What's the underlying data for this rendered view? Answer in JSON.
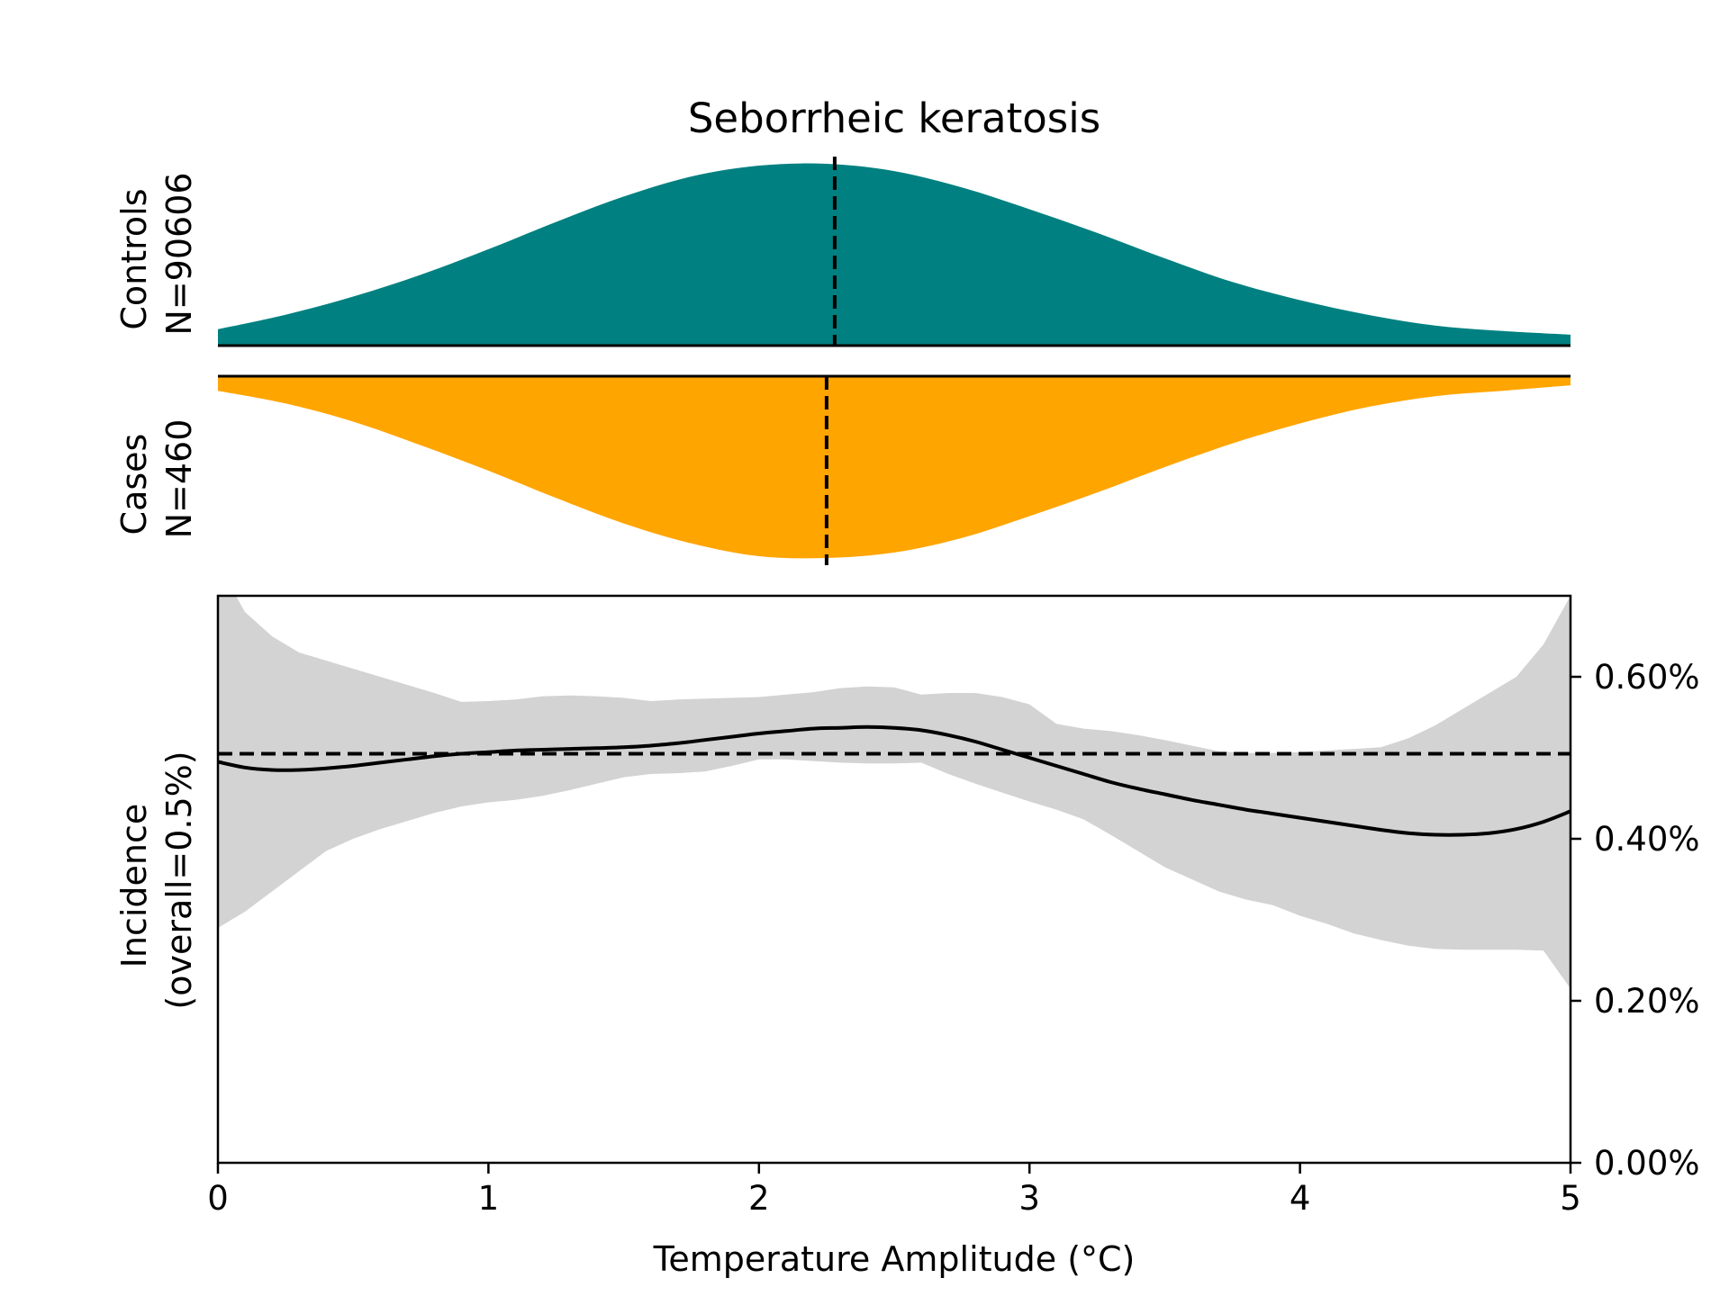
{
  "chart_data": {
    "type": "area",
    "title": "Seborrheic keratosis",
    "xlabel": "Temperature Amplitude (°C)",
    "xlim": [
      0,
      5
    ],
    "x_ticks": [
      "0",
      "1",
      "2",
      "3",
      "4",
      "5"
    ],
    "controls": {
      "label_line1": "Controls",
      "label_line2": "N=90606",
      "color": "#008080",
      "median": 2.28,
      "x": [
        0,
        0.25,
        0.5,
        0.75,
        1,
        1.25,
        1.5,
        1.75,
        2,
        2.25,
        2.5,
        2.75,
        3,
        3.25,
        3.5,
        3.75,
        4,
        4.25,
        4.5,
        4.75,
        5
      ],
      "density": [
        0.09,
        0.17,
        0.27,
        0.39,
        0.53,
        0.68,
        0.82,
        0.93,
        0.99,
        1.0,
        0.96,
        0.87,
        0.75,
        0.62,
        0.48,
        0.35,
        0.25,
        0.17,
        0.11,
        0.08,
        0.06
      ]
    },
    "cases": {
      "label_line1": "Cases",
      "label_line2": "N=460",
      "color": "#FFA500",
      "median": 2.25,
      "x": [
        0,
        0.25,
        0.5,
        0.75,
        1,
        1.25,
        1.5,
        1.75,
        2,
        2.25,
        2.5,
        2.75,
        3,
        3.25,
        3.5,
        3.75,
        4,
        4.25,
        4.5,
        4.75,
        5
      ],
      "density": [
        0.08,
        0.15,
        0.25,
        0.38,
        0.52,
        0.67,
        0.81,
        0.92,
        0.99,
        1.0,
        0.97,
        0.89,
        0.77,
        0.64,
        0.5,
        0.37,
        0.26,
        0.17,
        0.11,
        0.08,
        0.05
      ]
    },
    "incidence": {
      "ylabel_line1": "Incidence",
      "ylabel_line2": "(overall=0.5%)",
      "ylim": [
        0,
        0.7
      ],
      "y_ticks": [
        {
          "value": 0,
          "label": "0.00%"
        },
        {
          "value": 0.2,
          "label": "0.20%"
        },
        {
          "value": 0.4,
          "label": "0.40%"
        },
        {
          "value": 0.6,
          "label": "0.60%"
        }
      ],
      "overall": 0.505,
      "x": [
        0,
        0.1,
        0.2,
        0.3,
        0.4,
        0.5,
        0.6,
        0.7,
        0.8,
        0.9,
        1.0,
        1.1,
        1.2,
        1.3,
        1.4,
        1.5,
        1.6,
        1.7,
        1.8,
        1.9,
        2.0,
        2.1,
        2.2,
        2.3,
        2.4,
        2.5,
        2.6,
        2.7,
        2.8,
        2.9,
        3.0,
        3.1,
        3.2,
        3.3,
        3.4,
        3.5,
        3.6,
        3.7,
        3.8,
        3.9,
        4.0,
        4.1,
        4.2,
        4.3,
        4.4,
        4.5,
        4.6,
        4.7,
        4.8,
        4.9,
        5.0
      ],
      "line": [
        0.495,
        0.488,
        0.485,
        0.485,
        0.487,
        0.49,
        0.494,
        0.498,
        0.502,
        0.505,
        0.507,
        0.509,
        0.51,
        0.511,
        0.512,
        0.513,
        0.515,
        0.518,
        0.522,
        0.526,
        0.53,
        0.533,
        0.536,
        0.537,
        0.538,
        0.537,
        0.534,
        0.528,
        0.52,
        0.51,
        0.5,
        0.49,
        0.48,
        0.47,
        0.462,
        0.455,
        0.448,
        0.442,
        0.436,
        0.431,
        0.426,
        0.421,
        0.416,
        0.411,
        0.407,
        0.405,
        0.405,
        0.407,
        0.412,
        0.421,
        0.434
      ],
      "upper": [
        0.74,
        0.68,
        0.65,
        0.63,
        0.62,
        0.61,
        0.6,
        0.59,
        0.58,
        0.569,
        0.57,
        0.572,
        0.576,
        0.577,
        0.576,
        0.574,
        0.57,
        0.572,
        0.573,
        0.574,
        0.575,
        0.578,
        0.581,
        0.586,
        0.588,
        0.587,
        0.578,
        0.58,
        0.58,
        0.575,
        0.566,
        0.542,
        0.536,
        0.533,
        0.528,
        0.522,
        0.515,
        0.508,
        0.506,
        0.506,
        0.507,
        0.509,
        0.511,
        0.513,
        0.524,
        0.54,
        0.56,
        0.58,
        0.6,
        0.64,
        0.7
      ],
      "lower": [
        0.29,
        0.31,
        0.335,
        0.36,
        0.385,
        0.4,
        0.412,
        0.422,
        0.432,
        0.44,
        0.445,
        0.448,
        0.453,
        0.46,
        0.468,
        0.476,
        0.48,
        0.481,
        0.483,
        0.49,
        0.498,
        0.498,
        0.496,
        0.494,
        0.493,
        0.493,
        0.494,
        0.48,
        0.468,
        0.457,
        0.446,
        0.436,
        0.424,
        0.405,
        0.385,
        0.365,
        0.35,
        0.335,
        0.325,
        0.318,
        0.305,
        0.295,
        0.283,
        0.275,
        0.268,
        0.264,
        0.263,
        0.263,
        0.263,
        0.262,
        0.215
      ]
    }
  }
}
